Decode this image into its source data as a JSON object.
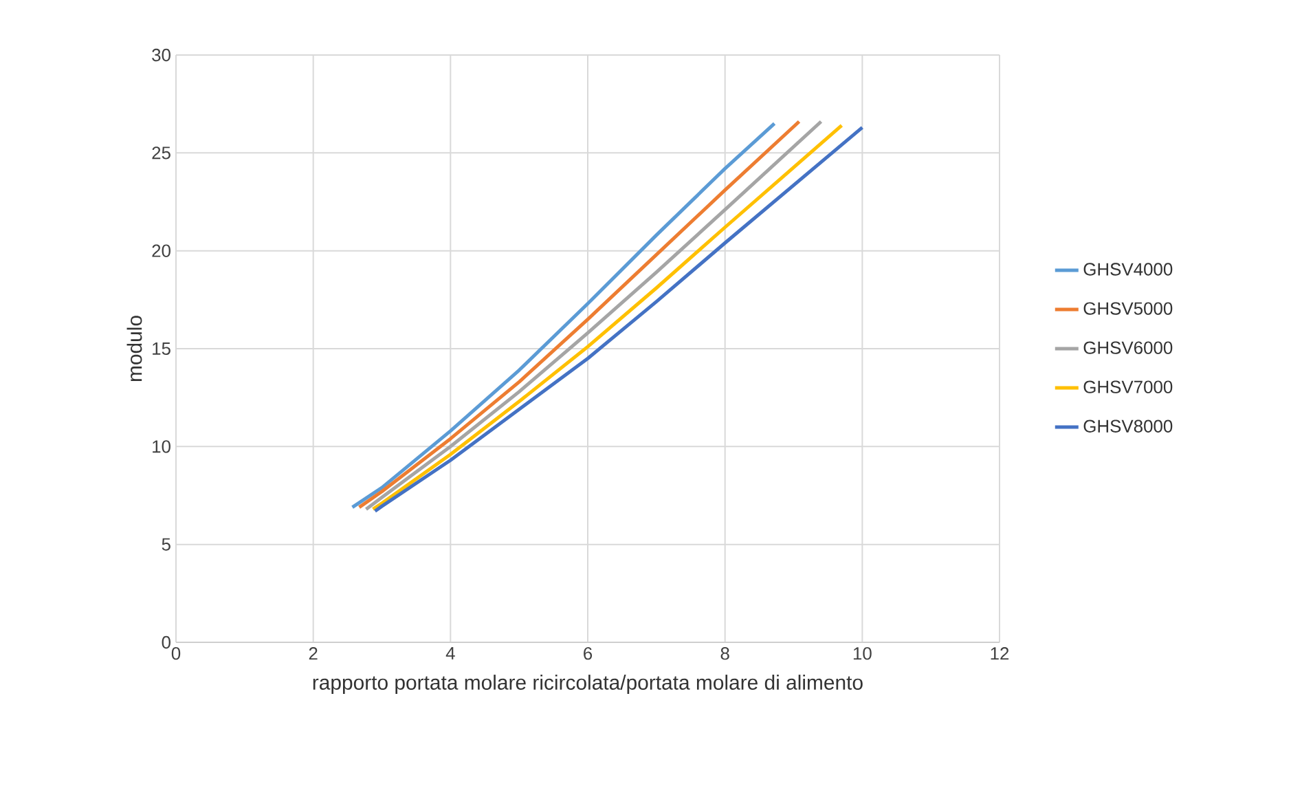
{
  "chart_data": {
    "type": "line",
    "xlabel": "rapporto portata molare ricircolata/portata molare di alimento",
    "ylabel": "modulo",
    "xlim": [
      0,
      12
    ],
    "xticks": [
      0,
      2,
      4,
      6,
      8,
      10,
      12
    ],
    "ylim": [
      0,
      30
    ],
    "yticks": [
      0,
      5,
      10,
      15,
      20,
      25,
      30
    ],
    "grid": true,
    "legend": "right",
    "marker": "none",
    "line_style": "solid",
    "series": [
      {
        "name": "GHSV4000",
        "color": "#5b9bd5",
        "x": [
          2.57,
          3,
          4,
          5,
          6,
          7,
          8,
          8.72
        ],
        "values": [
          6.9,
          7.9,
          10.8,
          13.9,
          17.3,
          20.8,
          24.2,
          26.5
        ]
      },
      {
        "name": "GHSV5000",
        "color": "#ed7d31",
        "x": [
          2.67,
          3,
          4,
          5,
          6,
          7,
          8,
          9.08
        ],
        "values": [
          6.9,
          7.7,
          10.4,
          13.3,
          16.5,
          19.8,
          23.1,
          26.6
        ]
      },
      {
        "name": "GHSV6000",
        "color": "#a5a5a5",
        "x": [
          2.77,
          3,
          4,
          5,
          6,
          7,
          8,
          9.4
        ],
        "values": [
          6.8,
          7.4,
          10.0,
          12.8,
          15.8,
          18.9,
          22.1,
          26.6
        ]
      },
      {
        "name": "GHSV7000",
        "color": "#ffc000",
        "x": [
          2.87,
          3,
          4,
          5,
          6,
          7,
          8,
          9.7
        ],
        "values": [
          6.8,
          7.1,
          9.6,
          12.3,
          15.1,
          18.1,
          21.2,
          26.4
        ]
      },
      {
        "name": "GHSV8000",
        "color": "#4472c4",
        "x": [
          2.9,
          3,
          4,
          5,
          6,
          7,
          8,
          10
        ],
        "values": [
          6.7,
          6.95,
          9.3,
          11.9,
          14.5,
          17.4,
          20.4,
          26.3
        ]
      }
    ]
  }
}
